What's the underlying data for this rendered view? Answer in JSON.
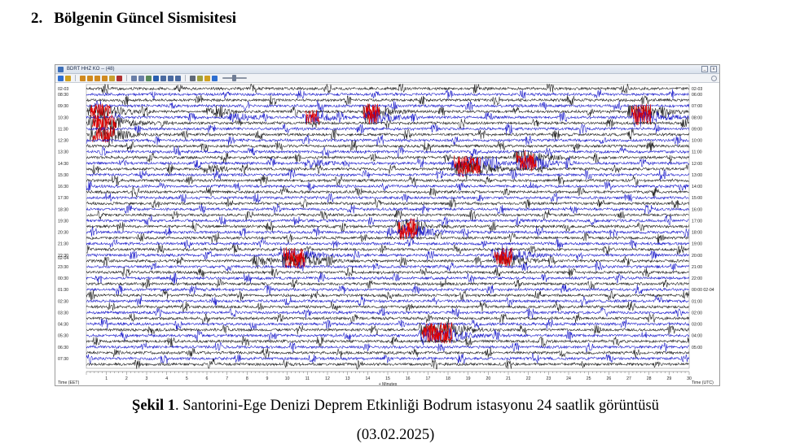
{
  "heading": {
    "number": "2.",
    "title": "Bölgenin Güncel Sismisitesi"
  },
  "window": {
    "title": "BDRT HHZ KO -- (48)",
    "minimize_label": "_",
    "close_label": "x"
  },
  "colors": {
    "trace_black": "#1a1a1a",
    "trace_blue": "#1414c8",
    "event_red": "#e00000",
    "grid": "#c9c9c9"
  },
  "chart_data": {
    "type": "line",
    "description_kind": "helicorder",
    "left_axis_label": "Time (EET)",
    "right_axis_label": "Time (UTC)",
    "x_axis_label": "+ Minutes",
    "x_ticks": [
      "1",
      "2",
      "3",
      "4",
      "5",
      "6",
      "7",
      "8",
      "9",
      "10",
      "11",
      "12",
      "13",
      "14",
      "15",
      "16",
      "17",
      "18",
      "19",
      "20",
      "21",
      "22",
      "23",
      "24",
      "25",
      "26",
      "27",
      "28",
      "29",
      "30"
    ],
    "xlim": [
      0,
      30
    ],
    "left_date_labels": [
      {
        "row": 0,
        "text": "02-03"
      },
      {
        "row": 30,
        "text": "02-04"
      }
    ],
    "right_date_labels": [
      {
        "row": 0,
        "text": "02-03"
      },
      {
        "row": 35,
        "text": "00:00 02-04"
      }
    ],
    "left_time_labels": [
      {
        "row": 1,
        "text": "08:30"
      },
      {
        "row": 3,
        "text": "09:30"
      },
      {
        "row": 5,
        "text": "10:30"
      },
      {
        "row": 7,
        "text": "11:30"
      },
      {
        "row": 9,
        "text": "12:30"
      },
      {
        "row": 11,
        "text": "13:30"
      },
      {
        "row": 13,
        "text": "14:30"
      },
      {
        "row": 15,
        "text": "15:30"
      },
      {
        "row": 17,
        "text": "16:30"
      },
      {
        "row": 19,
        "text": "17:30"
      },
      {
        "row": 21,
        "text": "18:30"
      },
      {
        "row": 23,
        "text": "19:30"
      },
      {
        "row": 25,
        "text": "20:30"
      },
      {
        "row": 27,
        "text": "21:30"
      },
      {
        "row": 29,
        "text": "22:30"
      },
      {
        "row": 31,
        "text": "23:30"
      },
      {
        "row": 33,
        "text": "00:30"
      },
      {
        "row": 35,
        "text": "01:30"
      },
      {
        "row": 37,
        "text": "02:30"
      },
      {
        "row": 39,
        "text": "03:30"
      },
      {
        "row": 41,
        "text": "04:30"
      },
      {
        "row": 43,
        "text": "05:30"
      },
      {
        "row": 45,
        "text": "06:30"
      },
      {
        "row": 47,
        "text": "07:30"
      }
    ],
    "right_time_labels": [
      {
        "row": 1,
        "text": "06:00"
      },
      {
        "row": 3,
        "text": "07:00"
      },
      {
        "row": 5,
        "text": "08:00"
      },
      {
        "row": 7,
        "text": "09:00"
      },
      {
        "row": 9,
        "text": "10:00"
      },
      {
        "row": 11,
        "text": "11:00"
      },
      {
        "row": 13,
        "text": "12:00"
      },
      {
        "row": 15,
        "text": "13:00"
      },
      {
        "row": 17,
        "text": "14:00"
      },
      {
        "row": 19,
        "text": "15:00"
      },
      {
        "row": 21,
        "text": "16:00"
      },
      {
        "row": 23,
        "text": "17:00"
      },
      {
        "row": 25,
        "text": "18:00"
      },
      {
        "row": 27,
        "text": "19:00"
      },
      {
        "row": 29,
        "text": "20:00"
      },
      {
        "row": 31,
        "text": "21:00"
      },
      {
        "row": 33,
        "text": "22:00"
      },
      {
        "row": 37,
        "text": "01:00"
      },
      {
        "row": 39,
        "text": "02:00"
      },
      {
        "row": 41,
        "text": "03:00"
      },
      {
        "row": 43,
        "text": "04:00"
      },
      {
        "row": 45,
        "text": "05:00"
      }
    ],
    "rows": 49,
    "events": [
      {
        "row": 4,
        "minute": 0.2,
        "duration": 1.0,
        "amp": "strong"
      },
      {
        "row": 6,
        "minute": 0.3,
        "duration": 1.2,
        "amp": "strong"
      },
      {
        "row": 8,
        "minute": 0.3,
        "duration": 1.1,
        "amp": "strong"
      },
      {
        "row": 4,
        "minute": 6.1,
        "duration": 0.4,
        "amp": "medium"
      },
      {
        "row": 5,
        "minute": 7.2,
        "duration": 0.5,
        "amp": "medium"
      },
      {
        "row": 5,
        "minute": 10.9,
        "duration": 0.7,
        "amp": "strong"
      },
      {
        "row": 4,
        "minute": 13.8,
        "duration": 0.8,
        "amp": "strong"
      },
      {
        "row": 5,
        "minute": 14.0,
        "duration": 0.6,
        "amp": "strong"
      },
      {
        "row": 4,
        "minute": 27.1,
        "duration": 1.0,
        "amp": "strong"
      },
      {
        "row": 5,
        "minute": 27.3,
        "duration": 0.8,
        "amp": "strong"
      },
      {
        "row": 13,
        "minute": 18.3,
        "duration": 1.3,
        "amp": "strong"
      },
      {
        "row": 14,
        "minute": 18.5,
        "duration": 1.1,
        "amp": "strong"
      },
      {
        "row": 12,
        "minute": 21.4,
        "duration": 0.9,
        "amp": "strong"
      },
      {
        "row": 13,
        "minute": 21.6,
        "duration": 0.8,
        "amp": "strong"
      },
      {
        "row": 14,
        "minute": 6.0,
        "duration": 0.3,
        "amp": "medium"
      },
      {
        "row": 13,
        "minute": 11.0,
        "duration": 0.4,
        "amp": "medium"
      },
      {
        "row": 24,
        "minute": 15.5,
        "duration": 0.9,
        "amp": "strong"
      },
      {
        "row": 25,
        "minute": 15.6,
        "duration": 0.9,
        "amp": "strong"
      },
      {
        "row": 29,
        "minute": 9.8,
        "duration": 1.0,
        "amp": "strong"
      },
      {
        "row": 30,
        "minute": 9.9,
        "duration": 1.0,
        "amp": "strong"
      },
      {
        "row": 29,
        "minute": 20.3,
        "duration": 0.9,
        "amp": "strong"
      },
      {
        "row": 30,
        "minute": 20.4,
        "duration": 0.8,
        "amp": "strong"
      },
      {
        "row": 30,
        "minute": 8.5,
        "duration": 0.3,
        "amp": "medium"
      },
      {
        "row": 42,
        "minute": 16.7,
        "duration": 1.5,
        "amp": "strong"
      },
      {
        "row": 43,
        "minute": 16.8,
        "duration": 1.4,
        "amp": "strong"
      }
    ]
  },
  "caption": {
    "label": "Şekil 1",
    "text": ". Santorini-Ege Denizi Deprem Etkinliği Bodrum istasyonu  24 saatlik görüntüsü",
    "date": "(03.02.2025)"
  }
}
